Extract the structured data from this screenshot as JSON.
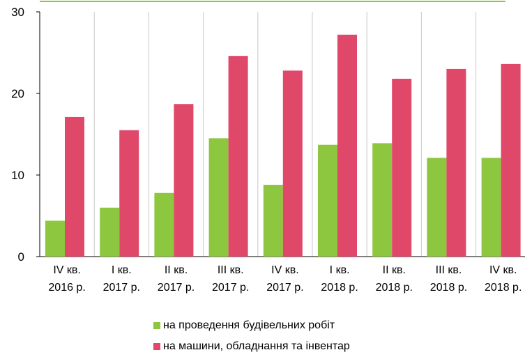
{
  "chart_data": {
    "type": "bar",
    "categories": [
      [
        "IV кв.",
        "2016 р."
      ],
      [
        "I кв.",
        "2017 р."
      ],
      [
        "II кв.",
        "2017 р."
      ],
      [
        "III кв.",
        "2017 р."
      ],
      [
        "IV кв.",
        "2017 р."
      ],
      [
        "I кв.",
        "2018 р."
      ],
      [
        "II кв.",
        "2018 р."
      ],
      [
        "III кв.",
        "2018 р."
      ],
      [
        "IV кв.",
        "2018 р."
      ]
    ],
    "series": [
      {
        "name": "на проведення будівельних робіт",
        "color": "#8dc63f",
        "values": [
          4.4,
          6.0,
          7.8,
          14.5,
          8.8,
          13.7,
          13.9,
          12.1,
          12.1
        ]
      },
      {
        "name": "на машини, обладнання та інвентар",
        "color": "#e0486a",
        "values": [
          17.1,
          15.5,
          18.7,
          24.6,
          22.8,
          27.2,
          21.8,
          23.0,
          23.6
        ]
      }
    ],
    "ylim": [
      0,
      30
    ],
    "yticks": [
      0,
      10,
      20,
      30
    ],
    "grid": "vertical",
    "legend": "bottom"
  }
}
